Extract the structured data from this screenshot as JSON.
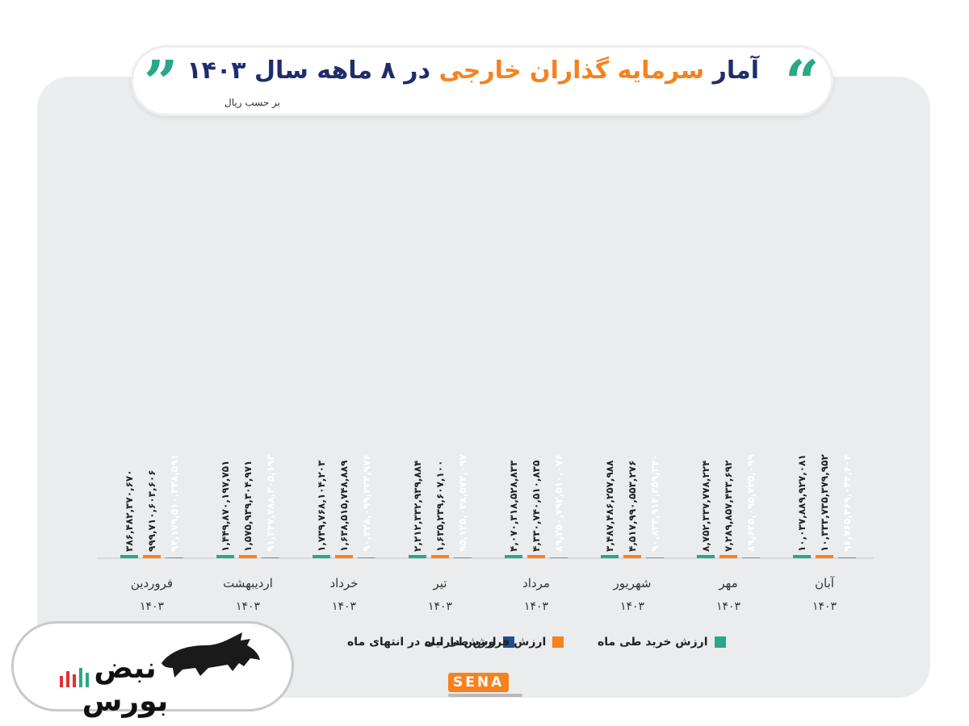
{
  "header": {
    "title_part1": "آمار",
    "title_highlight": "سرمایه گذاران خارجی",
    "title_part2": "در ۸ ماهه سال ۱۴۰۳",
    "subtitle": "بر حسب ریال",
    "quote_open": "”",
    "quote_close": "“"
  },
  "colors": {
    "buy": "#2aa789",
    "sell": "#f5821f",
    "assets": "#1f4e99",
    "title": "#1f2d6b",
    "background_card": "#ebeced"
  },
  "chart_data": {
    "type": "bar",
    "title": "آمار سرمایه گذاران خارجی در ۸ ماهه سال ۱۴۰۳",
    "subtitle": "بر حسب ریال",
    "categories": [
      "فروردین",
      "اردیبهشت",
      "خرداد",
      "تیر",
      "مرداد",
      "شهریور",
      "مهر",
      "آبان"
    ],
    "category_year": "۱۴۰۳",
    "ylim": [
      0,
      100000000000000000
    ],
    "grid": false,
    "legend_position": "bottom-center",
    "series": [
      {
        "name": "ارزش خرید طی ماه",
        "values": [
          386482370670,
          1449870197751,
          1739768104203,
          2212332939884,
          4070318528833,
          3487486257988,
          8752337778224,
          10037889927081
        ],
        "labels": [
          "۳۸۶,۴۸۲,۳۷۰,۶۷۰",
          "۱,۴۴۹,۸۷۰,۱۹۷,۷۵۱",
          "۱,۷۳۹,۷۶۸,۱۰۴,۲۰۳",
          "۲,۲۱۲,۳۳۲,۹۳۹,۸۸۴",
          "۴,۰۷۰,۳۱۸,۵۲۸,۸۳۳",
          "۳,۴۸۷,۴۸۶,۲۵۷,۹۸۸",
          "۸,۷۵۲,۳۳۷,۷۷۸,۲۲۴",
          "۱۰,۰۳۷,۸۸۹,۹۲۷,۰۸۱"
        ]
      },
      {
        "name": "ارزش فروش طی ماه",
        "values": [
          999710603606,
          1575939304971,
          1638515748889,
          1635239607100,
          4330740510835,
          4517990553276,
          7289857433692,
          10333735379952
        ],
        "labels": [
          "۹۹۹,۷۱۰,۶۰۳,۶۰۶",
          "۱,۵۷۵,۹۳۹,۳۰۴,۹۷۱",
          "۱,۶۳۸,۵۱۵,۷۴۸,۸۸۹",
          "۱,۶۳۵,۲۳۹,۶۰۷,۱۰۰",
          "۴,۳۳۰,۷۴۰,۵۱۰,۸۳۵",
          "۴,۵۱۷,۹۹۰,۵۵۳,۲۷۶",
          "۷,۲۸۹,۸۵۷,۴۳۳,۶۹۲",
          "۱۰,۳۳۳,۷۳۵,۳۷۹,۹۵۲"
        ]
      },
      {
        "name": "ارزش دارایی در انتهای ماه",
        "values": [
          94179510338591,
          91347788305193,
          90228099232976,
          95125038572097,
          89250792510076,
          90833914359340,
          89635095725099,
          96765469044604
        ],
        "labels": [
          "۹۴,۱۷۹,۵۱۰,۳۳۸,۵۹۱",
          "۹۱,۳۴۷,۷۸۸,۳۰۵,۱۹۳",
          "۹۰,۲۲۸,۰۹۹,۲۳۲,۹۷۶",
          "۹۵,۱۲۵,۰۳۸,۵۷۲,۰۹۷",
          "۸۹,۲۵۰,۷۹۲,۵۱۰,۰۷۶",
          "۹۰,۸۳۳,۹۱۴,۳۵۹,۳۴۰",
          "۸۹,۶۳۵,۰۹۵,۷۲۵,۰۹۹",
          "۹۶,۷۶۵,۴۶۹,۰۴۴,۶۰۴"
        ]
      }
    ]
  },
  "legend": {
    "assets": "ارزش دارایی در انتهای ماه",
    "sell": "ارزش فروش طی ماه",
    "buy": "ارزش خرید طی ماه"
  },
  "watermark": {
    "source": "SENA",
    "brand": "نبض بورس"
  }
}
